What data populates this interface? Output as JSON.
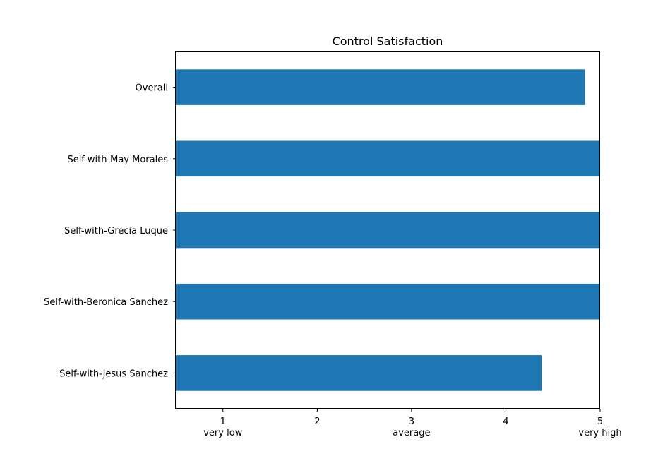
{
  "chart_data": {
    "type": "bar",
    "orientation": "horizontal",
    "title": "Control Satisfaction",
    "xlabel": "",
    "ylabel": "",
    "xlim": [
      0.5,
      5
    ],
    "xticks": [
      1,
      2,
      3,
      4,
      5
    ],
    "xtick_sublabels": [
      {
        "x": 1,
        "label": "very low"
      },
      {
        "x": 3,
        "label": "average"
      },
      {
        "x": 5,
        "label": "very high"
      }
    ],
    "categories": [
      "Overall",
      "Self-with-May Morales",
      "Self-with-Grecia Luque",
      "Self-with-Beronica Sanchez",
      "Self-with-Jesus Sanchez"
    ],
    "values": [
      4.84,
      5.0,
      5.0,
      5.0,
      4.38
    ],
    "bar_color": "#1f77b4",
    "grid": false,
    "legend": "none"
  }
}
